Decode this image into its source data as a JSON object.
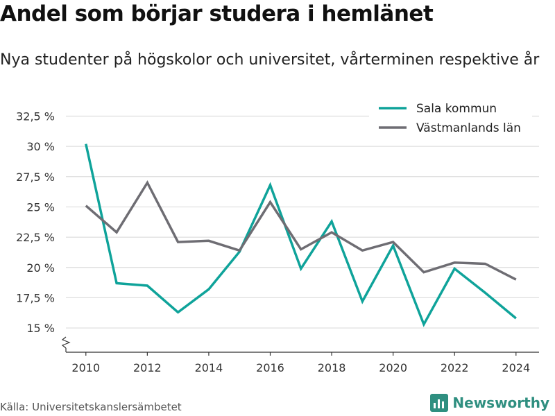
{
  "header": {
    "title": "Andel som börjar studera i hemlänet",
    "subtitle": "Nya studenter på högskolor och universitet, vårterminen respektive år"
  },
  "footer": {
    "source": "Källa: Universitetskanslersämbetet",
    "brand": "Newsworthy"
  },
  "colors": {
    "sala": "#0fa39a",
    "lan": "#6e6d73",
    "grid": "#dddddd",
    "brand": "#2f8f80"
  },
  "chart_data": {
    "type": "line",
    "title": "Andel som börjar studera i hemlänet",
    "subtitle": "Nya studenter på högskolor och universitet, vårterminen respektive år",
    "x": [
      2010,
      2011,
      2012,
      2013,
      2014,
      2015,
      2016,
      2017,
      2018,
      2019,
      2020,
      2021,
      2022,
      2023,
      2024
    ],
    "x_ticks": [
      2010,
      2012,
      2014,
      2016,
      2018,
      2020,
      2022,
      2024
    ],
    "y_ticks": [
      15,
      17.5,
      20,
      22.5,
      25,
      27.5,
      30,
      32.5
    ],
    "y_tick_labels": [
      "15 %",
      "17,5 %",
      "20 %",
      "22,5 %",
      "25 %",
      "27,5 %",
      "30 %",
      "32,5 %"
    ],
    "ylim": [
      13,
      33.5
    ],
    "y_axis_break": true,
    "grid": true,
    "legend_position": "top-right",
    "series": [
      {
        "name": "Sala kommun",
        "color": "#0fa39a",
        "values": [
          30.2,
          18.7,
          18.5,
          16.3,
          18.2,
          21.3,
          26.8,
          19.9,
          23.8,
          17.2,
          21.8,
          15.3,
          19.9,
          17.9,
          15.8
        ]
      },
      {
        "name": "Västmanlands län",
        "color": "#6e6d73",
        "values": [
          25.1,
          22.9,
          27.0,
          22.1,
          22.2,
          21.4,
          25.4,
          21.5,
          22.9,
          21.4,
          22.1,
          19.6,
          20.4,
          20.3,
          19.0
        ]
      }
    ]
  }
}
